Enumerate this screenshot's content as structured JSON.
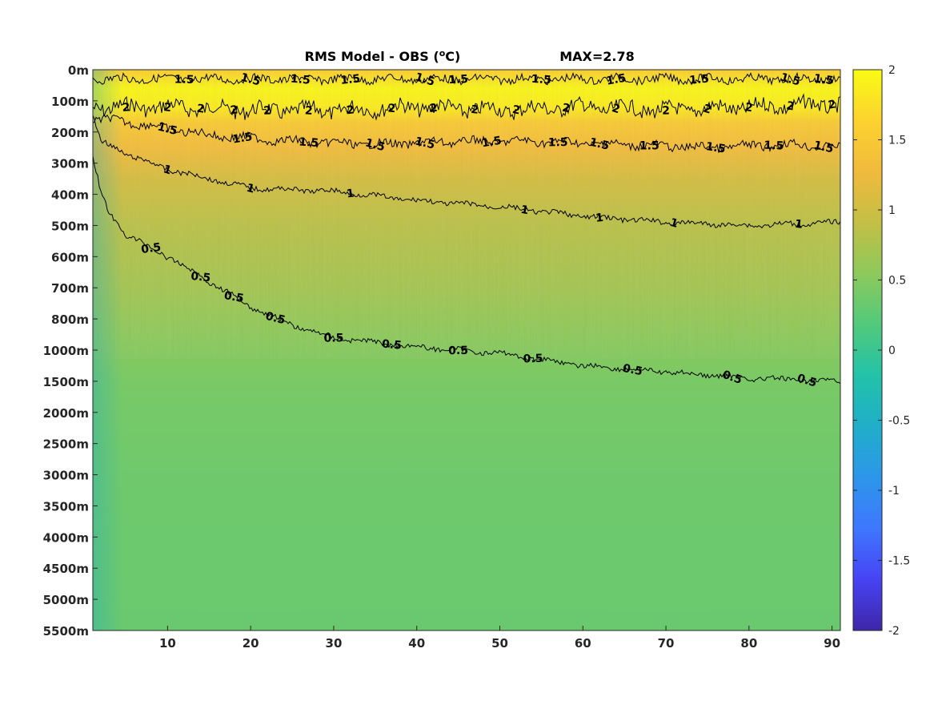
{
  "chart_data": {
    "type": "heatmap",
    "title": "RMS Model - OBS (",
    "title_unit_sup": "o",
    "title_unit_tail": "C)",
    "max_label": "MAX=2.78",
    "x_ticks": [
      10,
      20,
      30,
      40,
      50,
      60,
      70,
      80,
      90
    ],
    "xlim": [
      1,
      91
    ],
    "depth_levels": [
      "0m",
      "100m",
      "200m",
      "300m",
      "400m",
      "500m",
      "600m",
      "700m",
      "800m",
      "1000m",
      "1500m",
      "2000m",
      "2500m",
      "3000m",
      "3500m",
      "4000m",
      "4500m",
      "5000m",
      "5500m"
    ],
    "color_scale": {
      "range": [
        -2,
        2
      ],
      "ticks": [
        "2",
        "1.5",
        "1",
        "0.5",
        "0",
        "-0.5",
        "-1",
        "-1.5",
        "-2"
      ],
      "colormap": [
        "#3e26a8",
        "#4743f4",
        "#3e77fe",
        "#2d96ea",
        "#20aec9",
        "#22c2a8",
        "#52c97c",
        "#8dc95b",
        "#c3bf45",
        "#f0ba3d",
        "#fcd22f",
        "#f9fb14"
      ]
    },
    "field_profile": [
      {
        "level": 0,
        "value": 1.55
      },
      {
        "level": 0.6,
        "value": 1.95
      },
      {
        "level": 1.2,
        "value": 1.85
      },
      {
        "level": 1.7,
        "value": 1.5
      },
      {
        "level": 2.5,
        "value": 1.3
      },
      {
        "level": 3.5,
        "value": 1.05
      },
      {
        "level": 5,
        "value": 0.85
      },
      {
        "level": 7,
        "value": 0.7
      },
      {
        "level": 8.5,
        "value": 0.55
      },
      {
        "level": 10,
        "value": 0.42
      },
      {
        "level": 13,
        "value": 0.36
      },
      {
        "level": 18,
        "value": 0.33
      }
    ],
    "contours": [
      {
        "level": "2",
        "x": [
          1,
          10,
          20,
          30,
          40,
          50,
          60,
          70,
          80,
          91
        ],
        "depth_level": [
          1.2,
          1.2,
          1.3,
          1.3,
          1.2,
          1.3,
          1.2,
          1.3,
          1.2,
          1.1
        ],
        "labels": [
          5,
          10,
          14,
          18,
          22,
          27,
          32,
          37,
          42,
          47,
          52,
          58,
          64,
          70,
          75,
          80,
          85,
          90
        ]
      },
      {
        "level": "1.5",
        "x": [
          1,
          10,
          20,
          30,
          40,
          50,
          60,
          70,
          80,
          91
        ],
        "depth_level": [
          0.3,
          0.3,
          0.3,
          0.3,
          0.3,
          0.3,
          0.3,
          0.3,
          0.3,
          0.3
        ],
        "labels": [
          12,
          20,
          26,
          32,
          41,
          45,
          55,
          64,
          74,
          85,
          89
        ]
      },
      {
        "level": "1.5",
        "x": [
          1,
          3,
          8,
          15,
          25,
          35,
          45,
          55,
          65,
          75,
          85,
          91
        ],
        "depth_level": [
          1.6,
          1.6,
          1.8,
          2.1,
          2.3,
          2.4,
          2.3,
          2.3,
          2.4,
          2.5,
          2.4,
          2.5
        ],
        "labels": [
          10,
          19,
          27,
          35,
          41,
          49,
          57,
          62,
          68,
          76,
          83,
          89
        ]
      },
      {
        "level": "1",
        "x": [
          1,
          2,
          5,
          10,
          15,
          20,
          30,
          40,
          50,
          60,
          70,
          80,
          91
        ],
        "depth_level": [
          1.5,
          2.3,
          2.7,
          3.2,
          3.5,
          3.8,
          3.9,
          4.2,
          4.4,
          4.7,
          4.9,
          5.0,
          4.9
        ],
        "labels": [
          10,
          20,
          32,
          53,
          62,
          71,
          86
        ]
      },
      {
        "level": "0.5",
        "x": [
          1,
          2,
          3,
          5,
          10,
          15,
          20,
          25,
          30,
          40,
          50,
          60,
          70,
          80,
          91
        ],
        "depth_level": [
          2.8,
          4.0,
          4.6,
          5.3,
          6.0,
          6.8,
          7.6,
          8.2,
          8.6,
          8.9,
          9.1,
          9.5,
          9.7,
          9.9,
          10.0
        ],
        "labels": [
          8,
          14,
          18,
          23,
          30,
          37,
          45,
          54,
          66,
          78,
          87
        ]
      }
    ]
  }
}
